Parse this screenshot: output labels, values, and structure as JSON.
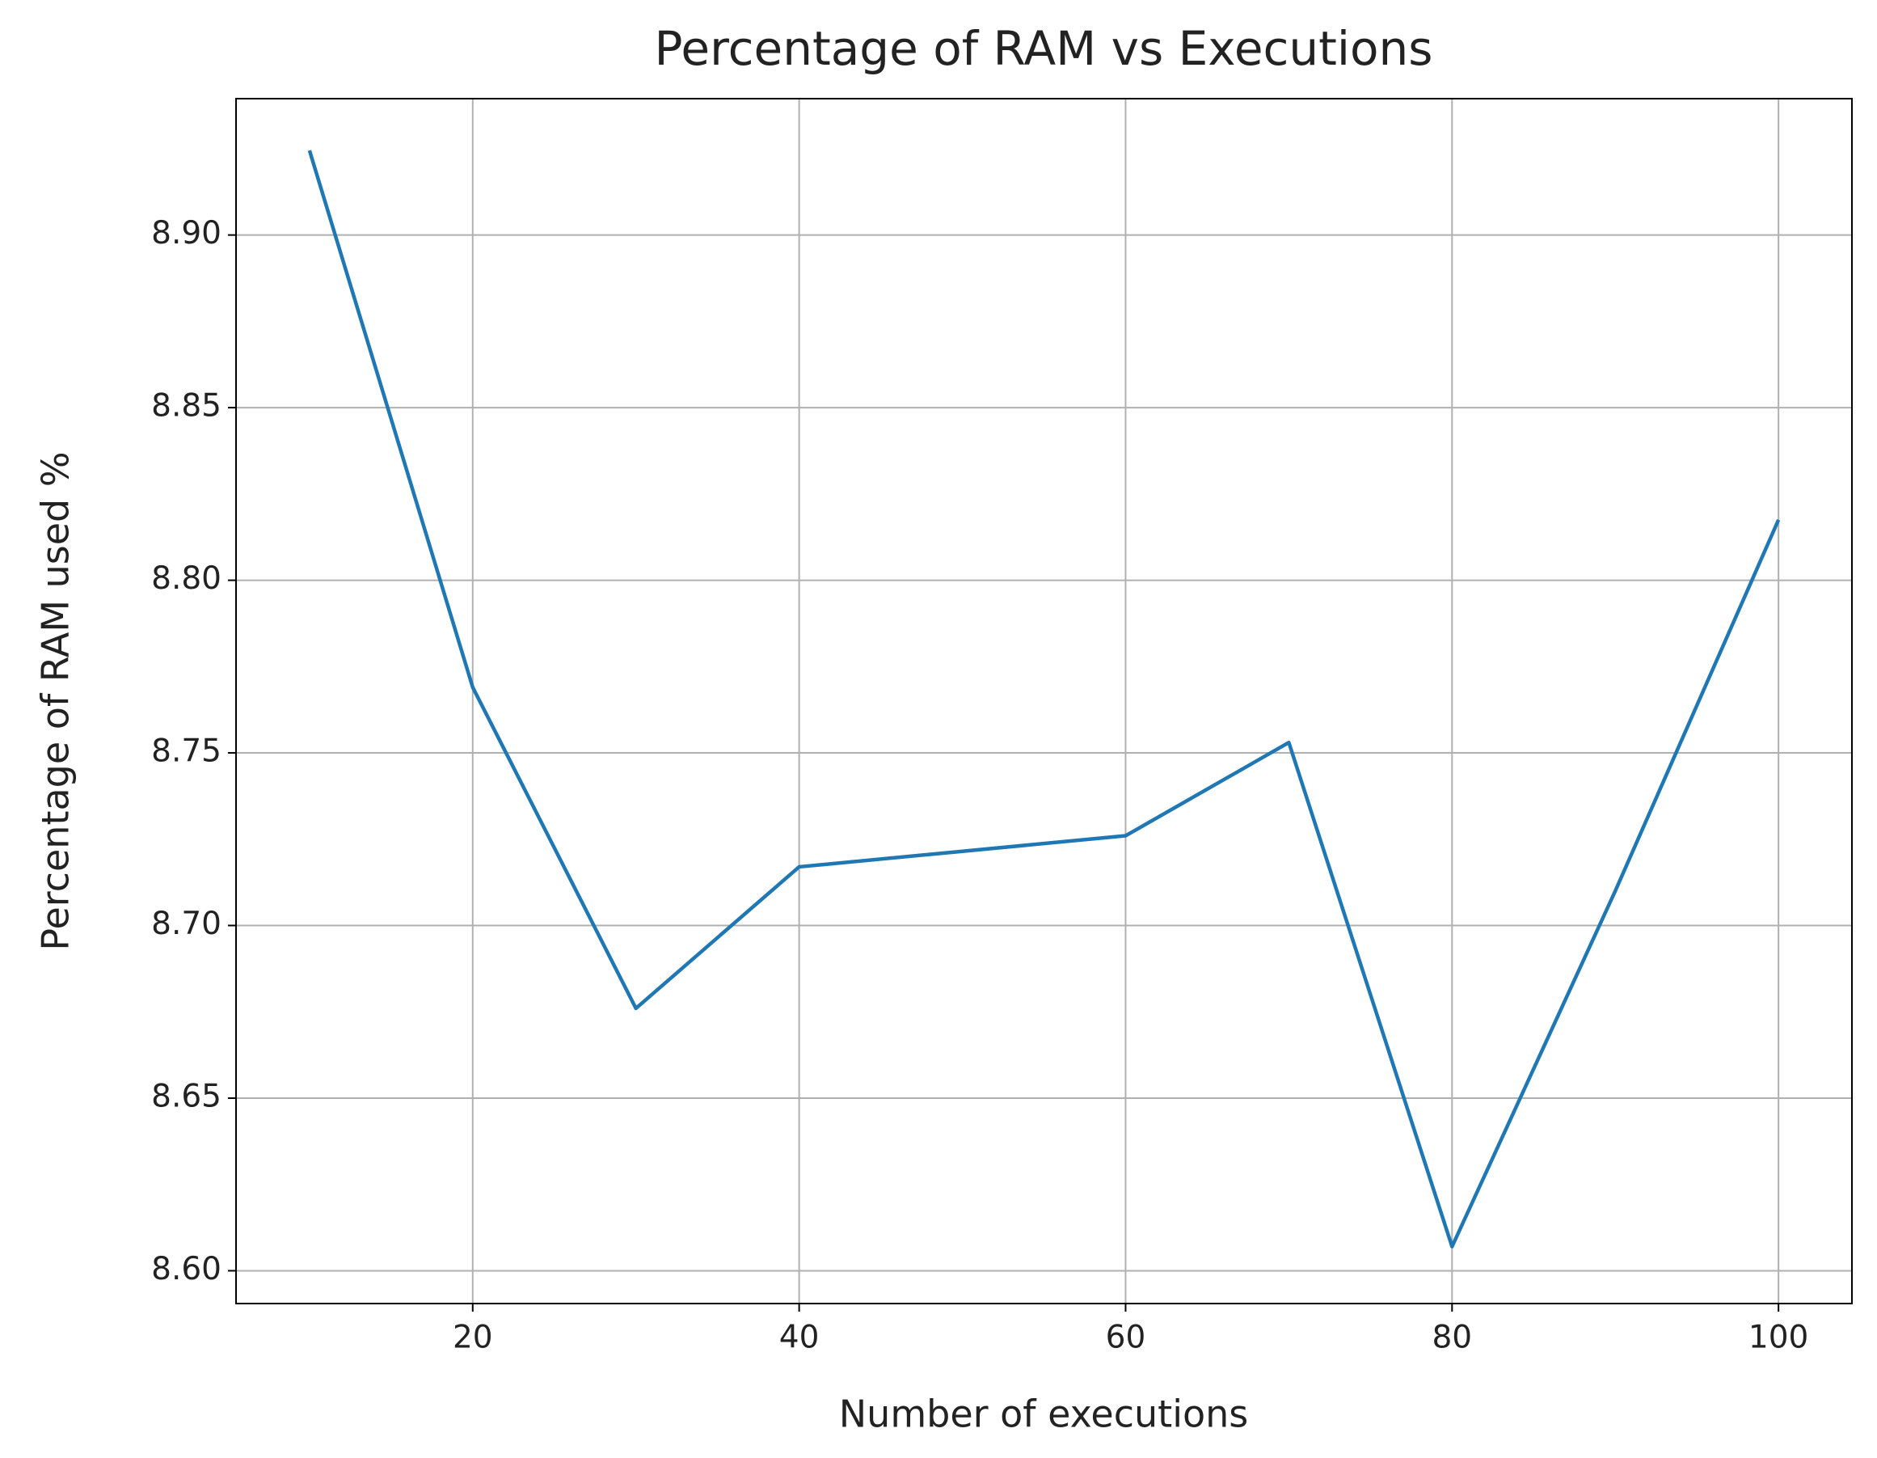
{
  "chart_data": {
    "type": "line",
    "title": "Percentage of RAM vs Executions",
    "x_label": "Number of executions",
    "y_label": "Percentage of RAM used %",
    "x": [
      10,
      20,
      30,
      40,
      50,
      60,
      70,
      80,
      90,
      100
    ],
    "series": [
      {
        "color": "#1f77b4",
        "values": [
          8.9245,
          8.769,
          8.676,
          8.717,
          8.7215,
          8.726,
          8.753,
          8.607,
          8.71,
          8.8175
        ]
      }
    ],
    "xlim": [
      5.5,
      104.5
    ],
    "ylim": [
      8.5905,
      8.9395
    ],
    "xticks": [
      20,
      40,
      60,
      80,
      100
    ],
    "yticks": [
      {
        "value": 8.6,
        "label": "8.60"
      },
      {
        "value": 8.65,
        "label": "8.65"
      },
      {
        "value": 8.7,
        "label": "8.70"
      },
      {
        "value": 8.75,
        "label": "8.75"
      },
      {
        "value": 8.8,
        "label": "8.80"
      },
      {
        "value": 8.85,
        "label": "8.85"
      },
      {
        "value": 8.9,
        "label": "8.90"
      }
    ],
    "grid": true
  }
}
